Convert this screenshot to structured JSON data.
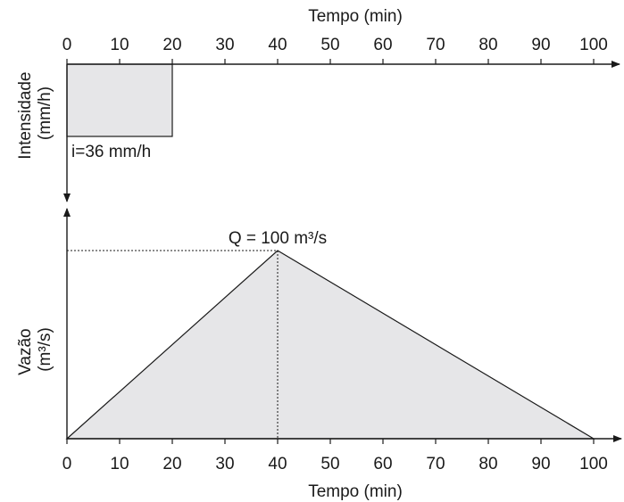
{
  "chart_data": [
    {
      "type": "bar",
      "name": "hyetograph",
      "xlabel": "Tempo (min)",
      "ylabel": "Intensidade\n(mm/h)",
      "xlim": [
        0,
        100
      ],
      "x_ticks": [
        0,
        10,
        20,
        30,
        40,
        50,
        60,
        70,
        80,
        90,
        100
      ],
      "x_axis_position": "top",
      "y_inverted": true,
      "bars": [
        {
          "x_start": 0,
          "x_end": 20,
          "value": 36
        }
      ],
      "annotation": "i=36 mm/h"
    },
    {
      "type": "area",
      "name": "hydrograph",
      "xlabel": "Tempo (min)",
      "ylabel": "Vazão\n(m³/s)",
      "xlim": [
        0,
        100
      ],
      "x_ticks": [
        0,
        10,
        20,
        30,
        40,
        50,
        60,
        70,
        80,
        90,
        100
      ],
      "x_axis_position": "bottom",
      "x": [
        0,
        40,
        100
      ],
      "y": [
        0,
        100,
        0
      ],
      "peak": {
        "x": 40,
        "y": 100
      },
      "annotation": "Q = 100 m³/s"
    }
  ],
  "colors": {
    "fill": "#e6e6e8",
    "stroke": "#1a1a1a"
  }
}
